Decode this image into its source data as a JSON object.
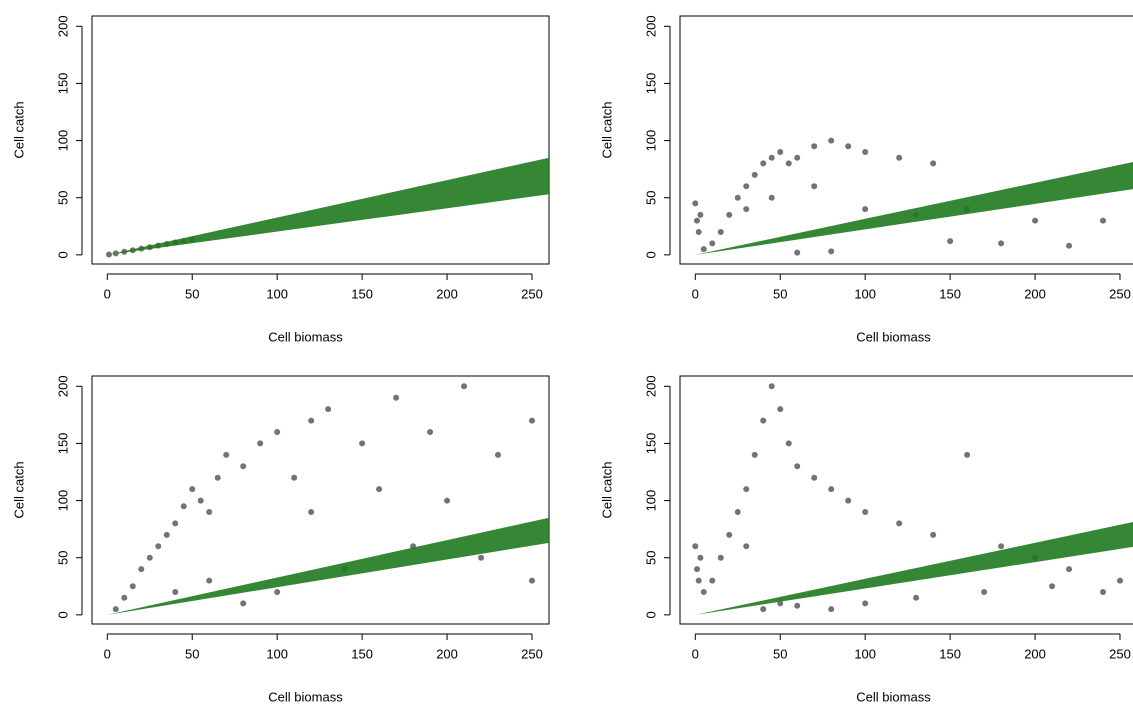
{
  "chart_data": [
    {
      "type": "scatter",
      "xlabel": "Cell biomass",
      "ylabel": "Cell catch",
      "xlim": [
        -9,
        260
      ],
      "ylim": [
        -8,
        209
      ],
      "xticks": [
        0,
        50,
        100,
        150,
        200,
        250
      ],
      "yticks": [
        0,
        50,
        100,
        150,
        200
      ],
      "series": [
        {
          "color": "#000000",
          "x": [
            1,
            5,
            10,
            15,
            20,
            25,
            30,
            35,
            40,
            45,
            50
          ],
          "values": [
            0.3,
            1.3,
            2.7,
            4,
            5.4,
            6.7,
            8.1,
            9.5,
            10.8,
            12,
            13.5
          ]
        }
      ],
      "band": {
        "color": "#1f7a1f",
        "x": [
          0,
          260
        ],
        "lower": [
          0,
          53
        ],
        "upper": [
          0,
          85
        ]
      }
    },
    {
      "type": "scatter",
      "xlabel": "Cell biomass",
      "ylabel": "Cell catch",
      "xlim": [
        -9,
        260
      ],
      "ylim": [
        -8,
        209
      ],
      "xticks": [
        0,
        50,
        100,
        150,
        200,
        250
      ],
      "yticks": [
        0,
        50,
        100,
        150,
        200
      ],
      "series": [
        {
          "color": "#000000",
          "x": [
            0,
            1,
            2,
            3,
            5,
            10,
            15,
            20,
            25,
            30,
            35,
            40,
            45,
            50,
            55,
            60,
            70,
            80,
            90,
            100,
            120,
            140,
            160,
            200,
            240,
            150,
            180,
            220,
            60,
            80,
            100,
            130,
            30,
            45,
            70
          ],
          "values": [
            45,
            30,
            20,
            35,
            5,
            10,
            20,
            35,
            50,
            60,
            70,
            80,
            85,
            90,
            80,
            85,
            95,
            100,
            95,
            90,
            85,
            80,
            40,
            30,
            30,
            12,
            10,
            8,
            2,
            3,
            40,
            35,
            40,
            50,
            60
          ]
        }
      ],
      "band": {
        "color": "#1f7a1f",
        "x": [
          0,
          260
        ],
        "lower": [
          0,
          58
        ],
        "upper": [
          0,
          82
        ]
      }
    },
    {
      "type": "scatter",
      "xlabel": "Cell biomass",
      "ylabel": "Cell catch",
      "xlim": [
        -9,
        260
      ],
      "ylim": [
        -8,
        209
      ],
      "xticks": [
        0,
        50,
        100,
        150,
        200,
        250
      ],
      "yticks": [
        0,
        50,
        100,
        150,
        200
      ],
      "series": [
        {
          "color": "#000000",
          "x": [
            5,
            10,
            15,
            20,
            25,
            30,
            35,
            40,
            45,
            50,
            55,
            60,
            65,
            70,
            80,
            90,
            100,
            110,
            120,
            130,
            150,
            170,
            190,
            210,
            230,
            250,
            40,
            60,
            80,
            100,
            140,
            180,
            220,
            250,
            120,
            160,
            200
          ],
          "values": [
            5,
            15,
            25,
            40,
            50,
            60,
            70,
            80,
            95,
            110,
            100,
            90,
            120,
            140,
            130,
            150,
            160,
            120,
            170,
            180,
            150,
            190,
            160,
            200,
            140,
            170,
            20,
            30,
            10,
            20,
            40,
            60,
            50,
            30,
            90,
            110,
            100
          ]
        }
      ],
      "band": {
        "color": "#1f7a1f",
        "x": [
          0,
          260
        ],
        "lower": [
          0,
          63
        ],
        "upper": [
          0,
          85
        ]
      }
    },
    {
      "type": "scatter",
      "xlabel": "Cell biomass",
      "ylabel": "Cell catch",
      "xlim": [
        -9,
        260
      ],
      "ylim": [
        -8,
        209
      ],
      "xticks": [
        0,
        50,
        100,
        150,
        200,
        250
      ],
      "yticks": [
        0,
        50,
        100,
        150,
        200
      ],
      "series": [
        {
          "color": "#000000",
          "x": [
            0,
            1,
            2,
            3,
            5,
            10,
            15,
            20,
            25,
            30,
            35,
            40,
            45,
            50,
            55,
            60,
            70,
            80,
            90,
            100,
            120,
            140,
            160,
            180,
            200,
            220,
            250,
            40,
            50,
            60,
            80,
            100,
            130,
            170,
            210,
            240,
            30
          ],
          "values": [
            60,
            40,
            30,
            50,
            20,
            30,
            50,
            70,
            90,
            110,
            140,
            170,
            200,
            180,
            150,
            130,
            120,
            110,
            100,
            90,
            80,
            70,
            140,
            60,
            50,
            40,
            30,
            5,
            10,
            8,
            5,
            10,
            15,
            20,
            25,
            20,
            60
          ]
        }
      ],
      "band": {
        "color": "#1f7a1f",
        "x": [
          0,
          260
        ],
        "lower": [
          0,
          60
        ],
        "upper": [
          0,
          82
        ]
      }
    }
  ]
}
